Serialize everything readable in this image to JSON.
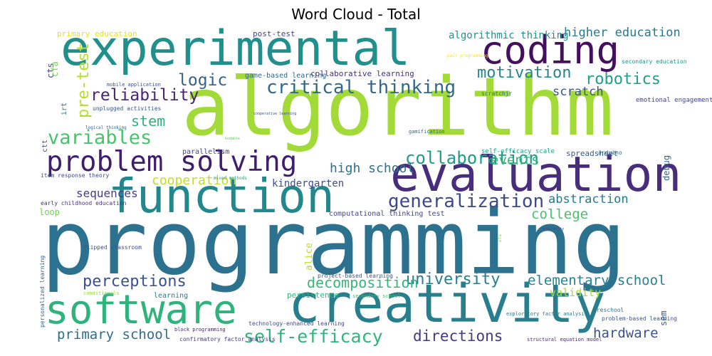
{
  "title": "Word Cloud - Total",
  "colors": {
    "lime": "#a0da39",
    "teal": "#2d708e",
    "dark_purple": "#482173",
    "deep_purple": "#46327e",
    "green": "#4ac16d",
    "cyan": "#1fa187",
    "blue": "#365c8d",
    "light_green": "#73d055",
    "yellow": "#d2e21b",
    "aqua": "#22a884"
  },
  "words": [
    {
      "text": "programming",
      "color": "#2c728e"
    },
    {
      "text": "algorithm",
      "color": "#a2da37"
    },
    {
      "text": "experimental",
      "color": "#21908d"
    },
    {
      "text": "evaluation",
      "color": "#472d7b"
    },
    {
      "text": "creativity",
      "color": "#277f8e"
    },
    {
      "text": "software",
      "color": "#2eb37c"
    },
    {
      "text": "function",
      "color": "#23888e"
    },
    {
      "text": "coding",
      "color": "#440f5f"
    },
    {
      "text": "problem solving",
      "color": "#3f1e6e"
    },
    {
      "text": "critical thinking",
      "color": "#31688e"
    },
    {
      "text": "motivation",
      "color": "#25848e"
    },
    {
      "text": "robotics",
      "color": "#1fa088"
    },
    {
      "text": "logic",
      "color": "#33638d"
    },
    {
      "text": "reliability",
      "color": "#482475"
    },
    {
      "text": "variables",
      "color": "#4ac16d"
    },
    {
      "text": "stem",
      "color": "#2db27d"
    },
    {
      "text": "scratch",
      "color": "#39568c"
    },
    {
      "text": "higher education",
      "color": "#2a788e"
    },
    {
      "text": "generalization",
      "color": "#3e4a89"
    },
    {
      "text": "university",
      "color": "#277f8e"
    },
    {
      "text": "collaboration",
      "color": "#1e9b8a"
    },
    {
      "text": "events",
      "color": "#35b779"
    },
    {
      "text": "high school",
      "color": "#2c718e"
    },
    {
      "text": "college",
      "color": "#4ac16d"
    },
    {
      "text": "abstraction",
      "color": "#297a8e"
    },
    {
      "text": "elementary school",
      "color": "#26828e"
    },
    {
      "text": "hardware",
      "color": "#3b528b"
    },
    {
      "text": "perceptions",
      "color": "#3b528b"
    },
    {
      "text": "self-efficacy",
      "color": "#2fb47c"
    },
    {
      "text": "directions",
      "color": "#443a83"
    },
    {
      "text": "primary school",
      "color": "#2f6c8e"
    },
    {
      "text": "decomposition",
      "color": "#35b779"
    },
    {
      "text": "validity",
      "color": "#a5db36"
    },
    {
      "text": "cooperation",
      "color": "#bddf26"
    },
    {
      "text": "sequences",
      "color": "#433e85"
    },
    {
      "text": "loop",
      "color": "#75d054"
    },
    {
      "text": "kindergarten",
      "color": "#3e4c8a"
    },
    {
      "text": "algorithmic thinking",
      "color": "#21918c"
    },
    {
      "text": "post-test",
      "color": "#414487"
    },
    {
      "text": "primary education",
      "color": "#e2e418"
    },
    {
      "text": "collaborative learning",
      "color": "#46327e"
    },
    {
      "text": "game-based learning",
      "color": "#31688e"
    },
    {
      "text": "parallelism",
      "color": "#3f4788"
    },
    {
      "text": "spreadsheet",
      "color": "#38588c"
    },
    {
      "text": "arduino",
      "color": "#2d708e"
    },
    {
      "text": "self-efficacy scale",
      "color": "#20a386"
    },
    {
      "text": "computational thinking test",
      "color": "#414487"
    },
    {
      "text": "early childhood education",
      "color": "#46337e"
    },
    {
      "text": "item response theory",
      "color": "#3e4989"
    },
    {
      "text": "mobile application",
      "color": "#3c4f8a"
    },
    {
      "text": "unplugged activities",
      "color": "#3b528b"
    },
    {
      "text": "logical thinking",
      "color": "#33628d"
    },
    {
      "text": "project-based learning",
      "color": "#3a548c"
    },
    {
      "text": "secondary school",
      "color": "#44bf70"
    },
    {
      "text": "persistence",
      "color": "#31b57b"
    },
    {
      "text": "learning",
      "color": "#287c8e"
    },
    {
      "text": "block programming",
      "color": "#482475"
    },
    {
      "text": "confirmatory factor analysis",
      "color": "#443983"
    },
    {
      "text": "technology-enhanced learning",
      "color": "#3f4889"
    },
    {
      "text": "preschool",
      "color": "#2a768e"
    },
    {
      "text": "problem-based learning",
      "color": "#3a548c"
    },
    {
      "text": "structural equation model",
      "color": "#482677"
    },
    {
      "text": "gamification",
      "color": "#34618d"
    },
    {
      "text": "secondary education",
      "color": "#1f958b"
    },
    {
      "text": "pair programming",
      "color": "#f1e51d"
    },
    {
      "text": "emotional engagement",
      "color": "#414487"
    },
    {
      "text": "scratchjr",
      "color": "#2c718e"
    },
    {
      "text": "cooperative learning",
      "color": "#3f4889"
    },
    {
      "text": "flipped classroom",
      "color": "#3b528b"
    },
    {
      "text": "conditionals",
      "color": "#95d840"
    },
    {
      "text": "exploratory factor analysis",
      "color": "#2a788e"
    },
    {
      "text": "mixed methods",
      "color": "#22a884"
    },
    {
      "text": "modularity",
      "color": "#3e4a89"
    },
    {
      "text": "kodable",
      "color": "#5ec962"
    },
    {
      "text": "pre-test",
      "color": "#b5de2b"
    },
    {
      "text": "sem",
      "color": "#355f8d"
    },
    {
      "text": "debug",
      "color": "#31688e"
    },
    {
      "text": "ctt",
      "color": "#3b528b"
    },
    {
      "text": "cts",
      "color": "#3e4a89"
    },
    {
      "text": "irt",
      "color": "#2c728e"
    },
    {
      "text": "cfa",
      "color": "#7ad151"
    },
    {
      "text": "alice",
      "color": "#b8de29"
    },
    {
      "text": "personalized learning",
      "color": "#33638d"
    },
    {
      "text": "efa",
      "color": "#8fd744"
    }
  ]
}
